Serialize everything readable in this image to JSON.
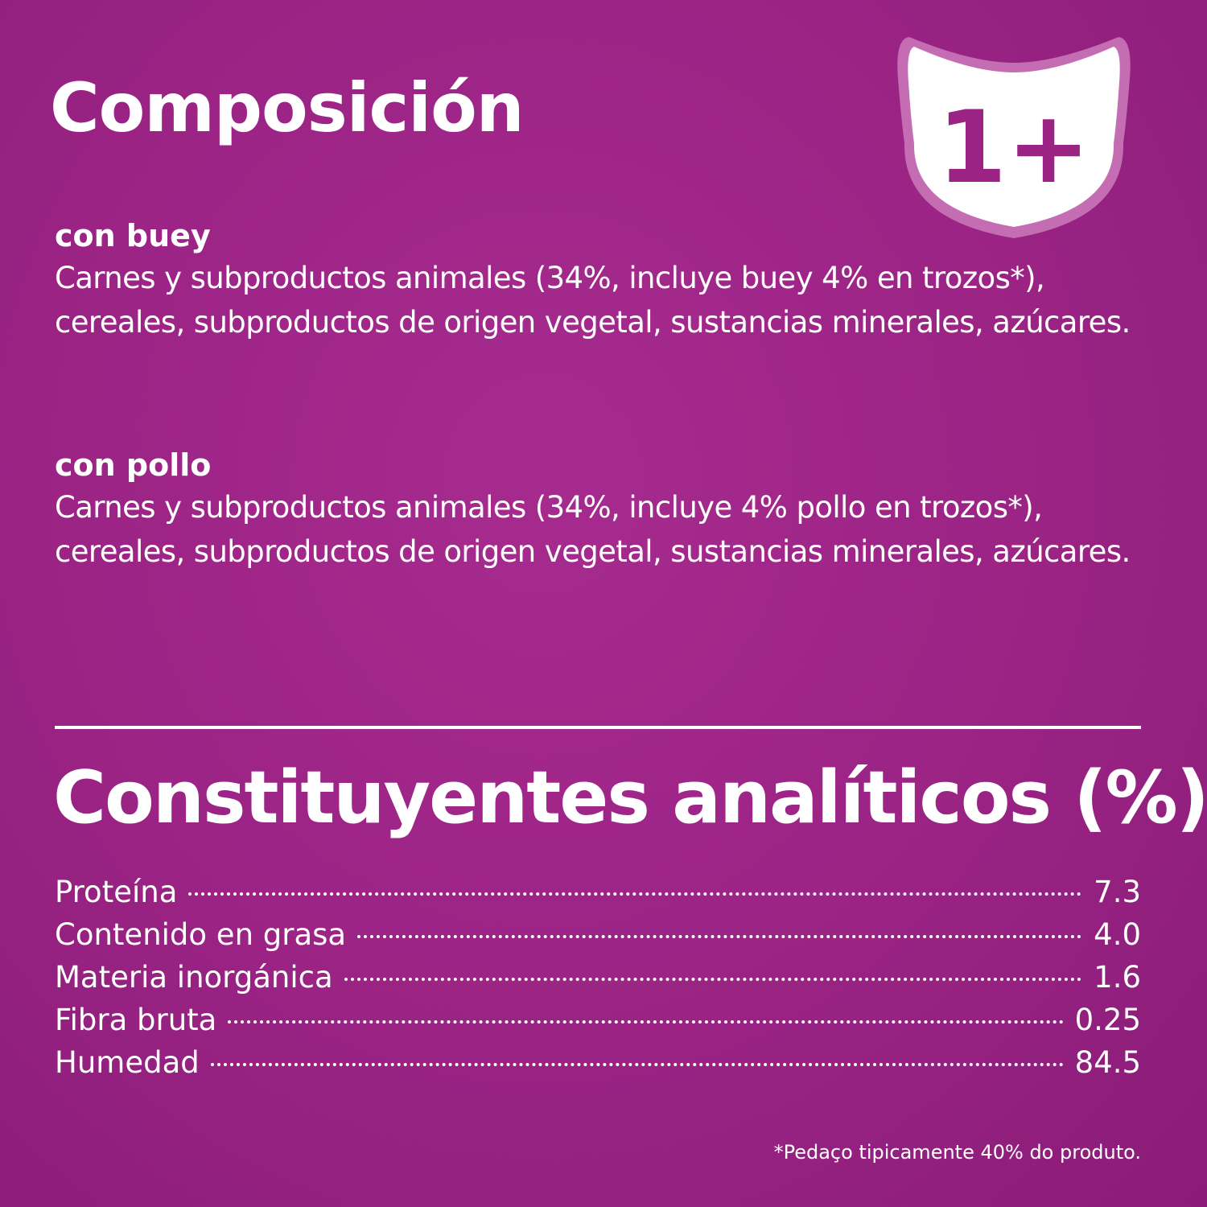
{
  "composition": {
    "title": "Composición",
    "variants": [
      {
        "name": "con buey",
        "ingredients": "Carnes y subproductos animales (34%, incluye buey 4% en trozos*), cereales, subproductos de origen vegetal, sustancias minerales, azúcares."
      },
      {
        "name": "con pollo",
        "ingredients": "Carnes y subproductos animales (34%, incluye 4% pollo en trozos*), cereales, subproductos de origen vegetal, sustancias minerales, azúcares."
      }
    ]
  },
  "badge": {
    "text": "1+",
    "icon": "cat-head-icon"
  },
  "analytics": {
    "title": "Constituyentes analíticos (%)",
    "rows": [
      {
        "label": "Proteína",
        "value": "7.3"
      },
      {
        "label": "Contenido en grasa",
        "value": "4.0"
      },
      {
        "label": "Materia inorgánica",
        "value": "1.6"
      },
      {
        "label": "Fibra bruta",
        "value": "0.25"
      },
      {
        "label": "Humedad",
        "value": "84.5"
      }
    ]
  },
  "footnote": "*Pedaço tipicamente 40% do produto.",
  "colors": {
    "background": "#9f2688",
    "text": "#ffffff",
    "badge_ring": "#c46db3"
  }
}
